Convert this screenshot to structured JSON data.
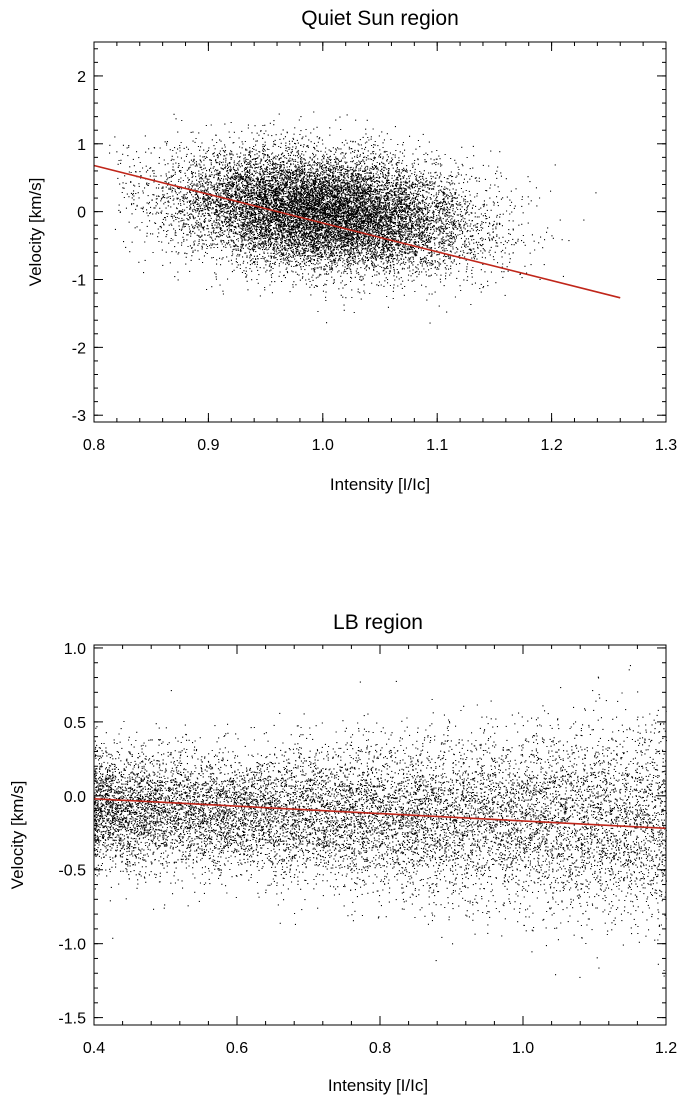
{
  "chart_data": [
    {
      "type": "scatter",
      "title": "Quiet Sun region",
      "xlabel": "Intensity [I/Ic]",
      "ylabel": "Velocity [km/s]",
      "xlim": [
        0.8,
        1.3
      ],
      "ylim": [
        -3.1,
        2.5
      ],
      "xticks": [
        {
          "v": 0.8,
          "label": "0.8"
        },
        {
          "v": 0.9,
          "label": "0.9"
        },
        {
          "v": 1.0,
          "label": "1.0"
        },
        {
          "v": 1.1,
          "label": "1.1"
        },
        {
          "v": 1.2,
          "label": "1.2"
        },
        {
          "v": 1.3,
          "label": "1.3"
        }
      ],
      "yticks": [
        {
          "v": -3,
          "label": "-3"
        },
        {
          "v": -2,
          "label": "-2"
        },
        {
          "v": -1,
          "label": "-1"
        },
        {
          "v": 0,
          "label": "0"
        },
        {
          "v": 1,
          "label": "1"
        },
        {
          "v": 2,
          "label": "2"
        }
      ],
      "grid": false,
      "point_color": "#000000",
      "fit_color": "#c0261a",
      "scatter_cloud": {
        "n_points": 14000,
        "x_mean": 1.0,
        "x_sd": 0.065,
        "slope": -3.0,
        "resid_sd": 0.42,
        "x_range": [
          0.81,
          1.26
        ]
      },
      "fit_line": {
        "x": [
          0.8,
          1.26
        ],
        "y": [
          0.68,
          -1.27
        ]
      }
    },
    {
      "type": "scatter",
      "title": "LB region",
      "xlabel": "Intensity [I/Ic]",
      "ylabel": "Velocity [km/s]",
      "xlim": [
        0.4,
        1.2
      ],
      "ylim": [
        -1.55,
        1.02
      ],
      "xticks": [
        {
          "v": 0.4,
          "label": "0.4"
        },
        {
          "v": 0.6,
          "label": "0.6"
        },
        {
          "v": 0.8,
          "label": "0.8"
        },
        {
          "v": 1.0,
          "label": "1.0"
        },
        {
          "v": 1.2,
          "label": "1.2"
        }
      ],
      "yticks": [
        {
          "v": -1.5,
          "label": "-1.5"
        },
        {
          "v": -1.0,
          "label": "-1.0"
        },
        {
          "v": -0.5,
          "label": "-0.5"
        },
        {
          "v": 0.0,
          "label": "0.0"
        },
        {
          "v": 0.5,
          "label": "0.5"
        },
        {
          "v": 1.0,
          "label": "1.0"
        }
      ],
      "grid": false,
      "point_color": "#000000",
      "fit_color": "#c0261a",
      "scatter_cloud": {
        "n_points": 12000,
        "x_range": [
          0.4,
          1.2
        ],
        "x_peak": 0.65,
        "y_center": -0.08,
        "resid_sd": 0.2
      },
      "fit_line": {
        "x": [
          0.4,
          1.2
        ],
        "y": [
          -0.02,
          -0.22
        ]
      }
    }
  ]
}
